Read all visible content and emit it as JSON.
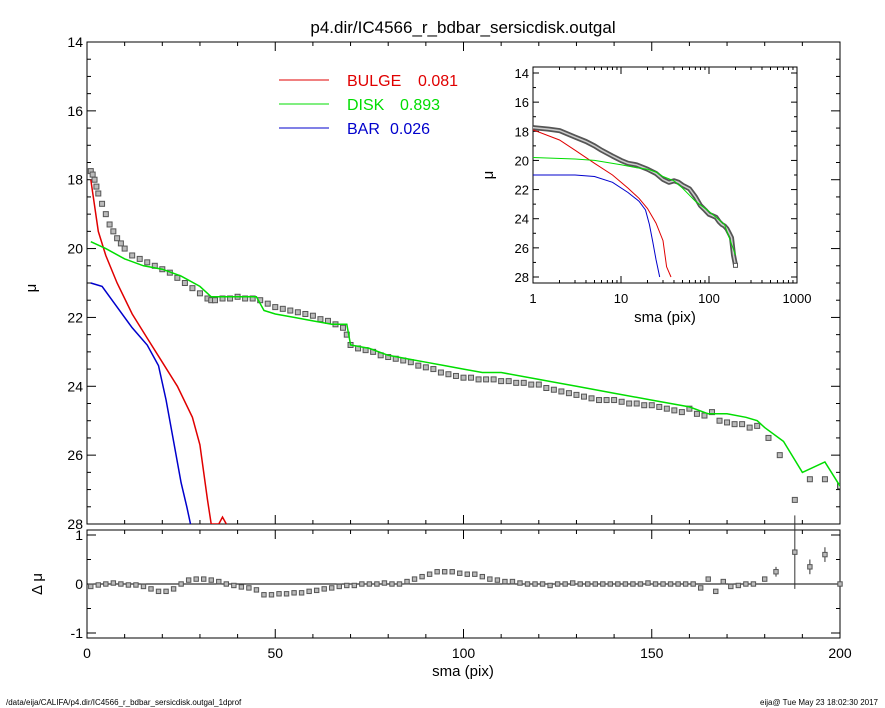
{
  "footer": {
    "left": "/data/eija/CALIFA/p4.dir/IC4566_r_bdbar_sersicdisk.outgal_1dprof",
    "right": "eija@  Tue May 23 18:02:30 2017"
  },
  "colors": {
    "bulge": "#e00000",
    "disk": "#00dd00",
    "bar": "#0000cc",
    "data": "#555555",
    "axis": "#000000"
  },
  "chart_data": [
    {
      "id": "main",
      "type": "line",
      "title": "p4.dir/IC4566_r_bdbar_sersicdisk.outgal",
      "xlabel": "",
      "ylabel": "μ",
      "xlim": [
        0,
        200
      ],
      "ylim": [
        28,
        14
      ],
      "yticks": [
        "14",
        "16",
        "18",
        "20",
        "22",
        "24",
        "26",
        "28"
      ],
      "legend": [
        {
          "label": "BULGE",
          "value": "0.081",
          "color": "#e00000"
        },
        {
          "label": "DISK",
          "value": "0.893",
          "color": "#00dd00"
        },
        {
          "label": "BAR",
          "value": "0.026",
          "color": "#0000cc"
        }
      ],
      "legend_position": "top-center",
      "series": [
        {
          "name": "BULGE",
          "color": "#e00000",
          "x": [
            1,
            3,
            5,
            8,
            12,
            16,
            20,
            24,
            28,
            30,
            32,
            33,
            35,
            36,
            37
          ],
          "y": [
            18.0,
            19.5,
            20.2,
            21.0,
            21.9,
            22.6,
            23.3,
            24.0,
            24.9,
            25.7,
            27.3,
            28.0,
            28.0,
            27.8,
            28.0
          ]
        },
        {
          "name": "DISK",
          "color": "#00dd00",
          "x": [
            1,
            5,
            10,
            15,
            20,
            25,
            30,
            33,
            35,
            40,
            45,
            47,
            50,
            55,
            60,
            65,
            69,
            70,
            75,
            80,
            85,
            90,
            95,
            100,
            105,
            110,
            120,
            130,
            140,
            150,
            160,
            165,
            170,
            175,
            178,
            180,
            185,
            190,
            196,
            200
          ],
          "y": [
            19.8,
            20.0,
            20.3,
            20.5,
            20.6,
            20.8,
            21.1,
            21.4,
            21.4,
            21.4,
            21.4,
            21.8,
            21.9,
            22.0,
            22.1,
            22.2,
            22.2,
            22.8,
            22.9,
            23.1,
            23.2,
            23.3,
            23.4,
            23.5,
            23.6,
            23.6,
            23.8,
            24.0,
            24.2,
            24.4,
            24.6,
            24.8,
            24.8,
            24.9,
            25.0,
            25.2,
            25.6,
            26.5,
            26.2,
            26.9
          ]
        },
        {
          "name": "BAR",
          "color": "#0000cc",
          "x": [
            1,
            4,
            8,
            12,
            16,
            19,
            21,
            23,
            25,
            26.5,
            27.5
          ],
          "y": [
            21.0,
            21.1,
            21.7,
            22.3,
            22.8,
            23.4,
            24.4,
            25.6,
            26.8,
            27.5,
            28.0
          ]
        },
        {
          "name": "data",
          "color": "#555555",
          "x": [
            1,
            1.5,
            2,
            2.5,
            3,
            4,
            5,
            6,
            7,
            8,
            9,
            10,
            12,
            14,
            16,
            18,
            20,
            22,
            24,
            26,
            28,
            30,
            32,
            33,
            34,
            36,
            38,
            40,
            42,
            44,
            46,
            48,
            50,
            52,
            54,
            56,
            58,
            60,
            62,
            64,
            66,
            68,
            69,
            70,
            72,
            74,
            76,
            78,
            80,
            82,
            84,
            86,
            88,
            90,
            92,
            94,
            96,
            98,
            100,
            102,
            104,
            106,
            108,
            110,
            112,
            114,
            116,
            118,
            120,
            122,
            124,
            126,
            128,
            130,
            132,
            134,
            136,
            138,
            140,
            142,
            144,
            146,
            148,
            150,
            152,
            154,
            156,
            158,
            160,
            162,
            164,
            166,
            168,
            170,
            172,
            174,
            176,
            178,
            181,
            184,
            188,
            192,
            196,
            200
          ],
          "y": [
            17.75,
            17.85,
            18.0,
            18.2,
            18.4,
            18.7,
            19.0,
            19.3,
            19.5,
            19.7,
            19.85,
            20.0,
            20.2,
            20.3,
            20.4,
            20.5,
            20.6,
            20.7,
            20.85,
            21.0,
            21.15,
            21.3,
            21.45,
            21.5,
            21.5,
            21.45,
            21.45,
            21.4,
            21.45,
            21.45,
            21.5,
            21.6,
            21.7,
            21.75,
            21.8,
            21.85,
            21.9,
            21.95,
            22.05,
            22.1,
            22.2,
            22.3,
            22.5,
            22.8,
            22.9,
            22.95,
            23.0,
            23.1,
            23.15,
            23.2,
            23.25,
            23.3,
            23.4,
            23.45,
            23.5,
            23.6,
            23.65,
            23.7,
            23.75,
            23.75,
            23.8,
            23.8,
            23.8,
            23.85,
            23.85,
            23.9,
            23.9,
            23.95,
            23.95,
            24.05,
            24.1,
            24.15,
            24.2,
            24.25,
            24.3,
            24.35,
            24.4,
            24.4,
            24.4,
            24.45,
            24.5,
            24.5,
            24.55,
            24.55,
            24.6,
            24.65,
            24.7,
            24.75,
            24.65,
            24.8,
            24.85,
            24.75,
            25.0,
            25.05,
            25.1,
            25.1,
            25.2,
            25.15,
            25.5,
            26.0,
            27.3,
            26.7,
            26.7,
            26.9
          ]
        }
      ]
    },
    {
      "id": "residual",
      "type": "scatter",
      "xlabel": "sma (pix)",
      "ylabel": "Δ μ",
      "xlim": [
        0,
        200
      ],
      "ylim": [
        -1,
        1
      ],
      "xticks": [
        "0",
        "50",
        "100",
        "150",
        "200"
      ],
      "yticks": [
        "-1",
        "0",
        "1"
      ],
      "x": [
        1,
        3,
        5,
        7,
        9,
        11,
        13,
        15,
        17,
        19,
        21,
        23,
        25,
        27,
        29,
        31,
        33,
        35,
        37,
        39,
        41,
        43,
        45,
        47,
        49,
        51,
        53,
        55,
        57,
        59,
        61,
        63,
        65,
        67,
        69,
        71,
        73,
        75,
        77,
        79,
        81,
        83,
        85,
        87,
        89,
        91,
        93,
        95,
        97,
        99,
        101,
        103,
        105,
        107,
        109,
        111,
        113,
        115,
        117,
        119,
        121,
        123,
        125,
        127,
        129,
        131,
        133,
        135,
        137,
        139,
        141,
        143,
        145,
        147,
        149,
        151,
        153,
        155,
        157,
        159,
        161,
        163,
        165,
        167,
        169,
        171,
        173,
        175,
        177,
        180,
        183,
        188,
        192,
        196,
        200
      ],
      "y": [
        -0.05,
        -0.02,
        0.0,
        0.02,
        0.0,
        -0.02,
        -0.02,
        -0.05,
        -0.1,
        -0.15,
        -0.15,
        -0.1,
        0.0,
        0.08,
        0.1,
        0.1,
        0.08,
        0.05,
        0.0,
        -0.03,
        -0.06,
        -0.08,
        -0.12,
        -0.22,
        -0.22,
        -0.2,
        -0.2,
        -0.18,
        -0.18,
        -0.15,
        -0.13,
        -0.1,
        -0.08,
        -0.05,
        -0.03,
        -0.03,
        0.0,
        0.0,
        0.0,
        0.02,
        0.0,
        0.0,
        0.05,
        0.1,
        0.15,
        0.2,
        0.25,
        0.25,
        0.25,
        0.22,
        0.2,
        0.2,
        0.15,
        0.1,
        0.08,
        0.05,
        0.05,
        0.02,
        0.0,
        0.0,
        0.0,
        -0.03,
        0.0,
        0.0,
        0.02,
        0.0,
        0.0,
        0.0,
        0.0,
        0.0,
        0.0,
        0.0,
        0.0,
        0.0,
        0.02,
        0.0,
        0.0,
        0.0,
        0.0,
        0.0,
        0.0,
        -0.08,
        0.1,
        -0.15,
        0.05,
        -0.05,
        -0.03,
        0.0,
        0.0,
        0.1,
        0.25,
        0.65,
        0.35,
        0.6,
        0.0
      ],
      "errors": [
        0,
        0,
        0,
        0,
        0,
        0,
        0,
        0,
        0,
        0,
        0,
        0,
        0,
        0,
        0,
        0,
        0,
        0,
        0,
        0,
        0,
        0,
        0,
        0,
        0,
        0,
        0,
        0,
        0,
        0,
        0,
        0,
        0,
        0,
        0,
        0,
        0,
        0,
        0,
        0,
        0,
        0,
        0,
        0,
        0,
        0,
        0,
        0,
        0,
        0,
        0,
        0,
        0,
        0,
        0,
        0,
        0,
        0,
        0,
        0,
        0,
        0,
        0,
        0,
        0,
        0,
        0,
        0,
        0,
        0,
        0,
        0,
        0,
        0,
        0,
        0,
        0,
        0,
        0,
        0,
        0,
        0,
        0,
        0,
        0,
        0,
        0,
        0,
        0,
        0.05,
        0.1,
        0.75,
        0.15,
        0.15,
        0
      ]
    },
    {
      "id": "inset",
      "type": "line",
      "xlabel": "sma (pix)",
      "ylabel": "μ",
      "xscale": "log",
      "xlim": [
        1,
        1000
      ],
      "ylim": [
        28,
        14
      ],
      "xticks": [
        "1",
        "10",
        "100",
        "1000"
      ],
      "yticks": [
        "14",
        "16",
        "18",
        "20",
        "22",
        "24",
        "26",
        "28"
      ],
      "series": [
        {
          "name": "BULGE",
          "color": "#e00000",
          "x": [
            1,
            2,
            3,
            5,
            8,
            12,
            16,
            20,
            25,
            30,
            33,
            37
          ],
          "y": [
            17.9,
            18.6,
            19.3,
            20.2,
            21.0,
            21.9,
            22.6,
            23.3,
            24.3,
            25.5,
            27.3,
            28.0
          ]
        },
        {
          "name": "DISK",
          "color": "#00dd00",
          "x": [
            1,
            3,
            5,
            10,
            15,
            20,
            25,
            30,
            40,
            50,
            70,
            100,
            150,
            200
          ],
          "y": [
            19.8,
            19.9,
            20.0,
            20.3,
            20.5,
            20.6,
            20.8,
            21.1,
            21.4,
            21.9,
            22.8,
            23.5,
            24.4,
            26.5
          ]
        },
        {
          "name": "BAR",
          "color": "#0000cc",
          "x": [
            1,
            3,
            5,
            8,
            12,
            16,
            19,
            21,
            23,
            25,
            27.5
          ],
          "y": [
            21.0,
            21.0,
            21.1,
            21.5,
            22.2,
            22.8,
            23.4,
            24.4,
            25.6,
            26.8,
            28.0
          ]
        },
        {
          "name": "data",
          "color": "#555555",
          "x": [
            1,
            1.5,
            2,
            3,
            4,
            5,
            6,
            8,
            10,
            12,
            15,
            20,
            25,
            30,
            35,
            40,
            45,
            50,
            60,
            70,
            80,
            90,
            100,
            110,
            120,
            130,
            140,
            150,
            160,
            170,
            180,
            190,
            200
          ],
          "y": [
            17.75,
            17.85,
            17.95,
            18.4,
            18.7,
            19.0,
            19.3,
            19.7,
            20.0,
            20.2,
            20.3,
            20.6,
            20.9,
            21.3,
            21.5,
            21.4,
            21.5,
            21.7,
            21.95,
            22.5,
            23.1,
            23.4,
            23.7,
            23.8,
            23.9,
            24.2,
            24.4,
            24.5,
            24.7,
            25.0,
            25.3,
            26.5,
            27.2
          ]
        }
      ]
    }
  ]
}
